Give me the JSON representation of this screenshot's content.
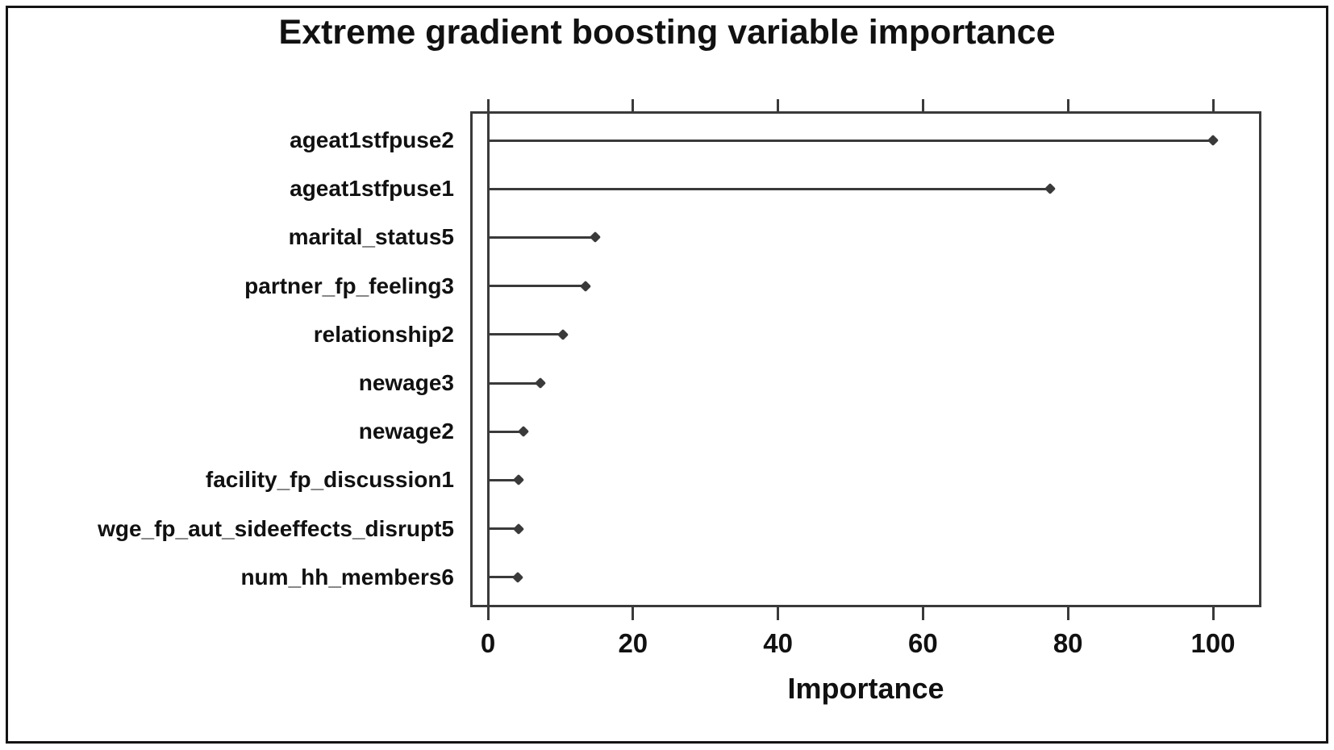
{
  "title": "Extreme gradient boosting variable importance",
  "chart_data": {
    "type": "scatter",
    "variant": "lollipop-dotplot",
    "marker": "diamond",
    "title": "Extreme gradient boosting variable importance",
    "xlabel": "Importance",
    "ylabel": "",
    "categories": [
      "ageat1stfpuse2",
      "ageat1stfpuse1",
      "marital_status5",
      "partner_fp_feeling3",
      "relationship2",
      "newage3",
      "newage2",
      "facility_fp_discussion1",
      "wge_fp_aut_sideeffects_disrupt5",
      "num_hh_members6"
    ],
    "values": [
      100,
      77.5,
      14.8,
      13.5,
      10.3,
      7.2,
      4.9,
      4.2,
      4.2,
      4.1
    ],
    "x_ticks": [
      0,
      20,
      40,
      60,
      80,
      100
    ],
    "xlim": [
      -2.5,
      106.5
    ],
    "grid": false,
    "legend": false,
    "ticks_top_and_bottom": true
  },
  "colors": {
    "background": "#ffffff",
    "frame": "#141414",
    "line": "#3a3a3a",
    "text": "#111111"
  }
}
